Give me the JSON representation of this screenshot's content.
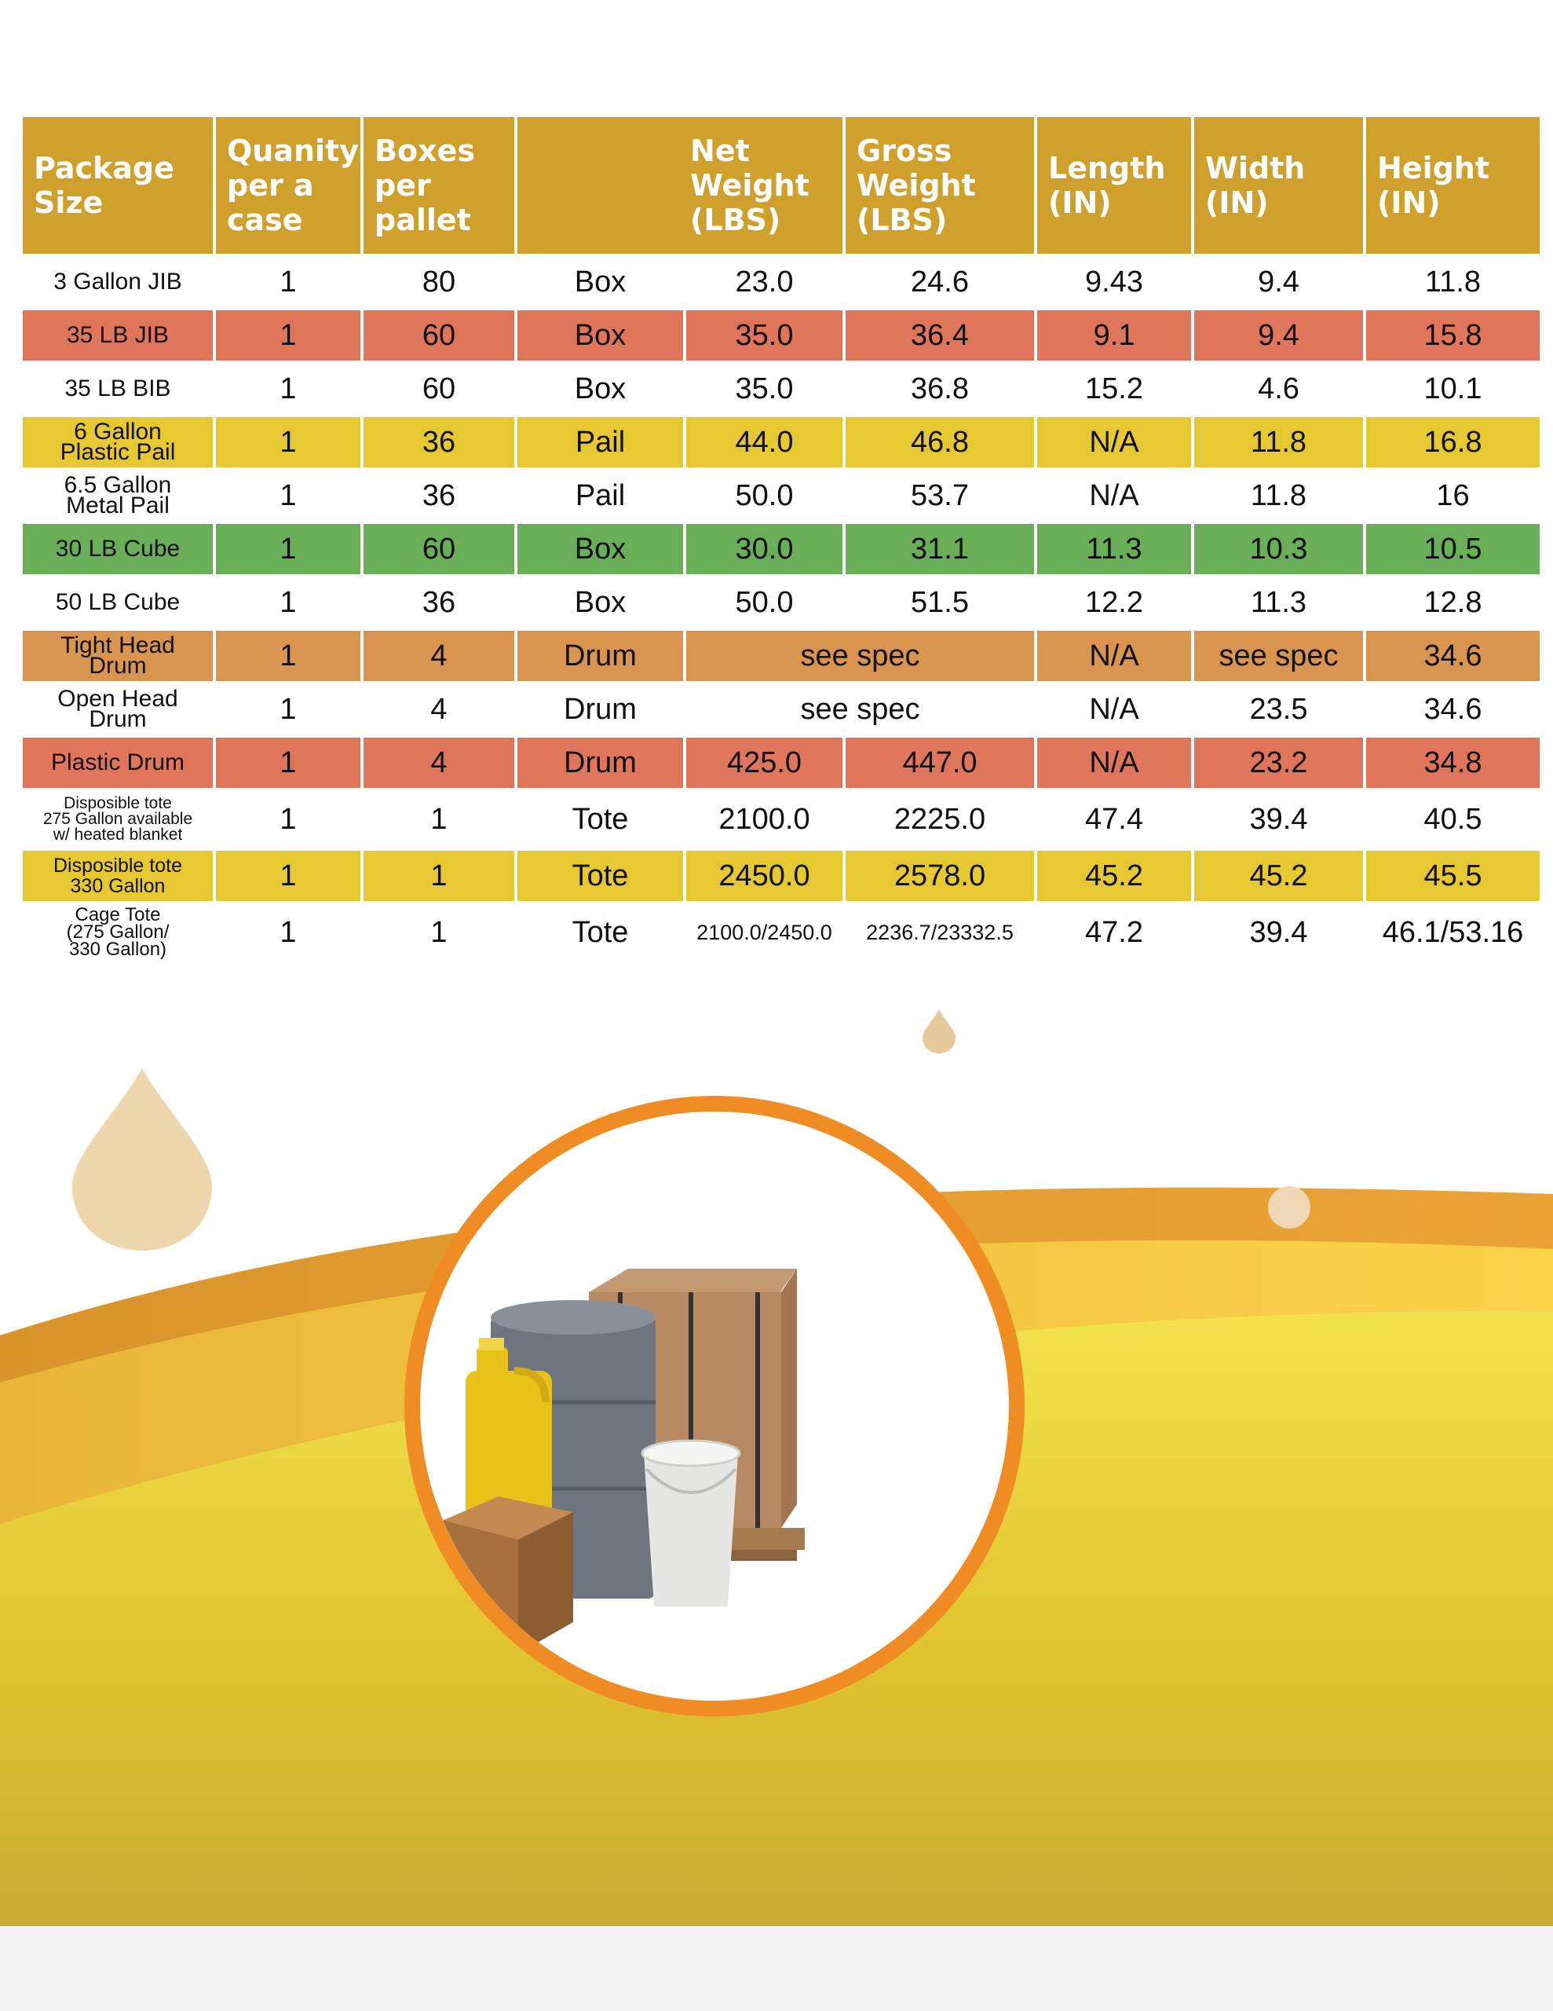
{
  "table": {
    "headers": [
      "Package\nSize",
      "Quanity\nper a\ncase",
      "Boxes\nper\npallet",
      "Net\nWeight\n(LBS)",
      "Gross\nWeight\n(LBS)",
      "Length\n(IN)",
      "Width\n(IN)",
      "Height\n(IN)"
    ],
    "rows": [
      {
        "name": "3 Gallon JIB",
        "qty": "1",
        "boxes": "80",
        "type": "Box",
        "net": "23.0",
        "gross": "24.6",
        "length": "9.43",
        "width": "9.4",
        "height": "11.8"
      },
      {
        "name": "35 LB JIB",
        "qty": "1",
        "boxes": "60",
        "type": "Box",
        "net": "35.0",
        "gross": "36.4",
        "length": "9.1",
        "width": "9.4",
        "height": "15.8"
      },
      {
        "name": "35 LB BIB",
        "qty": "1",
        "boxes": "60",
        "type": "Box",
        "net": "35.0",
        "gross": "36.8",
        "length": "15.2",
        "width": "4.6",
        "height": "10.1"
      },
      {
        "name": "6 Gallon\nPlastic Pail",
        "qty": "1",
        "boxes": "36",
        "type": "Pail",
        "net": "44.0",
        "gross": "46.8",
        "length": "N/A",
        "width": "11.8",
        "height": "16.8"
      },
      {
        "name": "6.5 Gallon\nMetal Pail",
        "qty": "1",
        "boxes": "36",
        "type": "Pail",
        "net": "50.0",
        "gross": "53.7",
        "length": "N/A",
        "width": "11.8",
        "height": "16"
      },
      {
        "name": "30 LB Cube",
        "qty": "1",
        "boxes": "60",
        "type": "Box",
        "net": "30.0",
        "gross": "31.1",
        "length": "11.3",
        "width": "10.3",
        "height": "10.5"
      },
      {
        "name": "50 LB Cube",
        "qty": "1",
        "boxes": "36",
        "type": "Box",
        "net": "50.0",
        "gross": "51.5",
        "length": "12.2",
        "width": "11.3",
        "height": "12.8"
      },
      {
        "name": "Tight Head\nDrum",
        "qty": "1",
        "boxes": "4",
        "type": "Drum",
        "weight_merged": "see spec",
        "length": "N/A",
        "width": "see spec",
        "height": "34.6"
      },
      {
        "name": "Open Head\nDrum",
        "qty": "1",
        "boxes": "4",
        "type": "Drum",
        "weight_merged": "see spec",
        "length": "N/A",
        "width": "23.5",
        "height": "34.6"
      },
      {
        "name": "Plastic Drum",
        "qty": "1",
        "boxes": "4",
        "type": "Drum",
        "net": "425.0",
        "gross": "447.0",
        "length": "N/A",
        "width": "23.2",
        "height": "34.8"
      },
      {
        "name": "Disposible tote\n275 Gallon available\nw/ heated blanket",
        "qty": "1",
        "boxes": "1",
        "type": "Tote",
        "net": "2100.0",
        "gross": "2225.0",
        "length": "47.4",
        "width": "39.4",
        "height": "40.5"
      },
      {
        "name": "Disposible tote\n330 Gallon",
        "qty": "1",
        "boxes": "1",
        "type": "Tote",
        "net": "2450.0",
        "gross": "2578.0",
        "length": "45.2",
        "width": "45.2",
        "height": "45.5"
      },
      {
        "name": "Cage Tote\n(275 Gallon/\n330 Gallon)",
        "qty": "1",
        "boxes": "1",
        "type": "Tote",
        "net": "2100.0/2450.0",
        "gross": "2236.7/23332.5",
        "length": "47.2",
        "width": "39.4",
        "height": "46.1/53.16"
      }
    ]
  },
  "colors": {
    "header": "#d0a02d",
    "row_red": "#df765c",
    "row_yellow": "#e5c832",
    "row_green": "#6aae5a",
    "row_orange": "#d99550",
    "circle_ring": "#f08c24"
  },
  "image": {
    "subject": "packaging-containers-photo"
  }
}
